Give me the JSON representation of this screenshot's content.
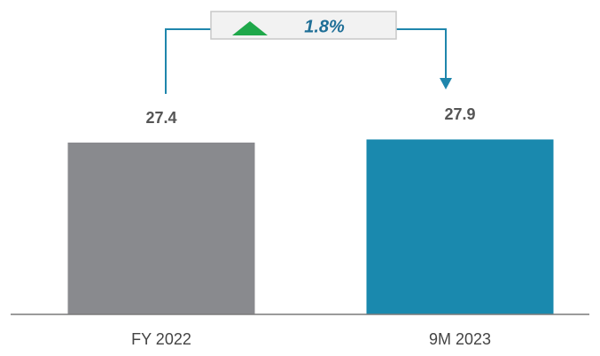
{
  "chart_data": {
    "type": "bar",
    "categories": [
      "FY 2022",
      "9M 2023"
    ],
    "values": [
      27.4,
      27.9
    ],
    "colors": [
      "#898a8e",
      "#1a89ae"
    ],
    "annotation": "1.8%"
  }
}
